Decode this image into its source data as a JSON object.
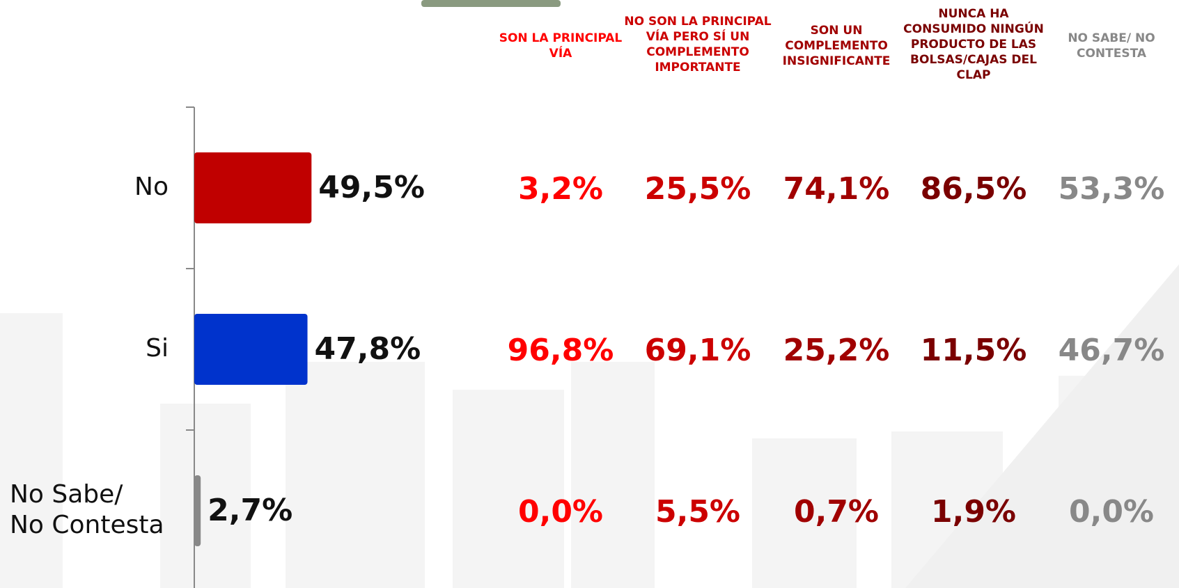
{
  "chart_data": {
    "type": "bar",
    "orientation": "horizontal",
    "categories": [
      "No",
      "Si",
      "No Sabe/No Contesta"
    ],
    "values": [
      49.5,
      47.8,
      2.7
    ],
    "value_labels": [
      "49,5%",
      "47,8%",
      "2,7%"
    ],
    "colors": [
      "#c00000",
      "#0033cc",
      "#888888"
    ]
  },
  "table": {
    "columns": [
      "SON LA PRINCIPAL VÍA",
      "NO SON LA PRINCIPAL VÍA PERO SÍ UN COMPLEMENTO IMPORTANTE",
      "SON UN COMPLEMENTO INSIGNIFICANTE",
      "NUNCA HA CONSUMIDO NINGÚN PRODUCTO DE LAS BOLSAS/CAJAS DEL CLAP",
      "NO SABE/ NO CONTESTA"
    ],
    "colors": [
      "#ff0000",
      "#cc0000",
      "#a00000",
      "#7a0000",
      "#888888"
    ],
    "rows": [
      [
        "3,2%",
        "25,5%",
        "74,1%",
        "86,5%",
        "53,3%"
      ],
      [
        "96,8%",
        "69,1%",
        "25,2%",
        "11,5%",
        "46,7%"
      ],
      [
        "0,0%",
        "5,5%",
        "0,7%",
        "1,9%",
        "0,0%"
      ]
    ]
  }
}
